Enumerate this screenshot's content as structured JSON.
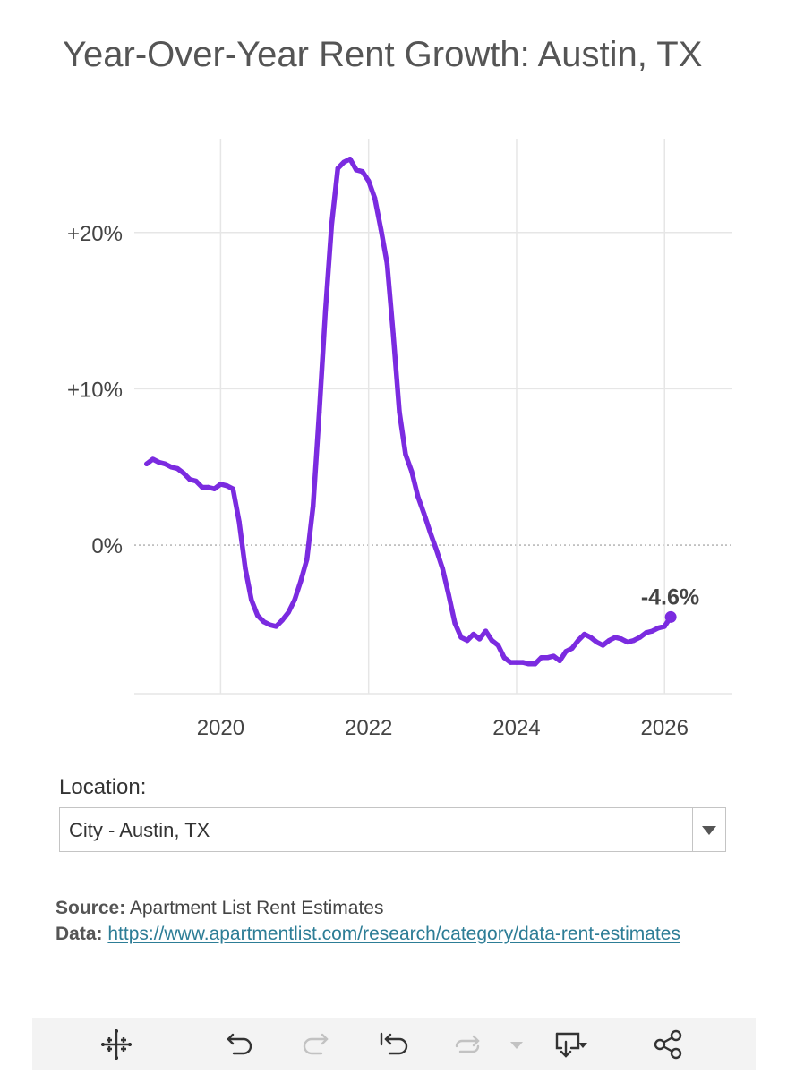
{
  "title": "Year-Over-Year Rent Growth: Austin, TX",
  "chart_data": {
    "type": "line",
    "title": "Year-Over-Year Rent Growth: Austin, TX",
    "xlabel": "",
    "ylabel": "",
    "x_ticks": [
      "2020",
      "2022",
      "2024",
      "2026"
    ],
    "y_ticks": [
      "+20%",
      "+10%",
      "0%"
    ],
    "xlim": [
      "2018-11",
      "2026-12"
    ],
    "ylim": [
      -9.5,
      26
    ],
    "grid": true,
    "series": [
      {
        "color": "#7b2be0",
        "points": [
          [
            "2019-01",
            5.2
          ],
          [
            "2019-02",
            5.5
          ],
          [
            "2019-03",
            5.3
          ],
          [
            "2019-04",
            5.2
          ],
          [
            "2019-05",
            5.0
          ],
          [
            "2019-06",
            4.9
          ],
          [
            "2019-07",
            4.6
          ],
          [
            "2019-08",
            4.2
          ],
          [
            "2019-09",
            4.1
          ],
          [
            "2019-10",
            3.7
          ],
          [
            "2019-11",
            3.7
          ],
          [
            "2019-12",
            3.6
          ],
          [
            "2020-01",
            3.9
          ],
          [
            "2020-02",
            3.8
          ],
          [
            "2020-03",
            3.6
          ],
          [
            "2020-04",
            1.5
          ],
          [
            "2020-05",
            -1.5
          ],
          [
            "2020-06",
            -3.5
          ],
          [
            "2020-07",
            -4.5
          ],
          [
            "2020-08",
            -4.9
          ],
          [
            "2020-09",
            -5.1
          ],
          [
            "2020-10",
            -5.2
          ],
          [
            "2020-11",
            -4.8
          ],
          [
            "2020-12",
            -4.3
          ],
          [
            "2021-01",
            -3.5
          ],
          [
            "2021-02",
            -2.3
          ],
          [
            "2021-03",
            -0.9
          ],
          [
            "2021-04",
            2.5
          ],
          [
            "2021-05",
            8.5
          ],
          [
            "2021-06",
            15.0
          ],
          [
            "2021-07",
            20.5
          ],
          [
            "2021-08",
            24.1
          ],
          [
            "2021-09",
            24.5
          ],
          [
            "2021-10",
            24.7
          ],
          [
            "2021-11",
            24.0
          ],
          [
            "2021-12",
            23.9
          ],
          [
            "2022-01",
            23.3
          ],
          [
            "2022-02",
            22.2
          ],
          [
            "2022-03",
            20.2
          ],
          [
            "2022-04",
            18.0
          ],
          [
            "2022-05",
            13.5
          ],
          [
            "2022-06",
            8.5
          ],
          [
            "2022-07",
            5.8
          ],
          [
            "2022-08",
            4.7
          ],
          [
            "2022-09",
            3.1
          ],
          [
            "2022-10",
            2.0
          ],
          [
            "2022-11",
            0.8
          ],
          [
            "2022-12",
            -0.3
          ],
          [
            "2023-01",
            -1.5
          ],
          [
            "2023-02",
            -3.2
          ],
          [
            "2023-03",
            -5.0
          ],
          [
            "2023-04",
            -5.9
          ],
          [
            "2023-05",
            -6.1
          ],
          [
            "2023-06",
            -5.7
          ],
          [
            "2023-07",
            -6.0
          ],
          [
            "2023-08",
            -5.5
          ],
          [
            "2023-09",
            -6.1
          ],
          [
            "2023-10",
            -6.4
          ],
          [
            "2023-11",
            -7.2
          ],
          [
            "2023-12",
            -7.5
          ],
          [
            "2024-01",
            -7.5
          ],
          [
            "2024-02",
            -7.5
          ],
          [
            "2024-03",
            -7.6
          ],
          [
            "2024-04",
            -7.6
          ],
          [
            "2024-05",
            -7.2
          ],
          [
            "2024-06",
            -7.2
          ],
          [
            "2024-07",
            -7.1
          ],
          [
            "2024-08",
            -7.4
          ],
          [
            "2024-09",
            -6.8
          ],
          [
            "2024-10",
            -6.6
          ],
          [
            "2024-11",
            -6.1
          ],
          [
            "2024-12",
            -5.7
          ],
          [
            "2025-01",
            -5.9
          ],
          [
            "2025-02",
            -6.2
          ],
          [
            "2025-03",
            -6.4
          ],
          [
            "2025-04",
            -6.1
          ],
          [
            "2025-05",
            -5.9
          ],
          [
            "2025-06",
            -6.0
          ],
          [
            "2025-07",
            -6.2
          ],
          [
            "2025-08",
            -6.1
          ],
          [
            "2025-09",
            -5.9
          ],
          [
            "2025-10",
            -5.6
          ],
          [
            "2025-11",
            -5.5
          ],
          [
            "2025-12",
            -5.3
          ],
          [
            "2026-01",
            -5.2
          ],
          [
            "2026-02",
            -4.6
          ]
        ]
      }
    ],
    "annotations": [
      {
        "text": "-4.6%",
        "x": "2026-02",
        "y": -4.6
      }
    ]
  },
  "location": {
    "label": "Location:",
    "selected": "City - Austin, TX"
  },
  "source": {
    "source_label": "Source:",
    "source_text": "Apartment List Rent Estimates",
    "data_label": "Data:",
    "data_link": "https://www.apartmentlist.com/research/category/data-rent-estimates"
  },
  "toolbar": {
    "icons": [
      "tableau-logo-icon",
      "undo-icon",
      "redo-icon",
      "revert-icon",
      "refresh-icon",
      "dropdown-icon",
      "download-icon",
      "share-icon"
    ]
  }
}
